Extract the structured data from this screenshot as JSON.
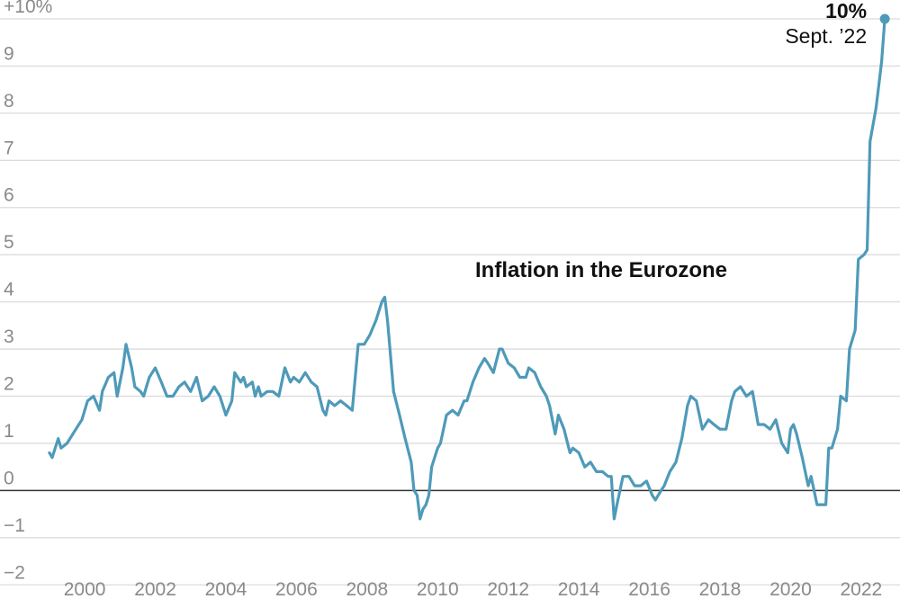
{
  "chart_data": {
    "type": "line",
    "title": "Inflation in the Eurozone",
    "ylim": [
      -2.3,
      10.4
    ],
    "xlim": [
      1997.6,
      2023.1
    ],
    "y_ticks": [
      {
        "value": 10,
        "label": "+10%"
      },
      {
        "value": 9,
        "label": "9"
      },
      {
        "value": 8,
        "label": "8"
      },
      {
        "value": 7,
        "label": "7"
      },
      {
        "value": 6,
        "label": "6"
      },
      {
        "value": 5,
        "label": "5"
      },
      {
        "value": 4,
        "label": "4"
      },
      {
        "value": 3,
        "label": "3"
      },
      {
        "value": 2,
        "label": "2"
      },
      {
        "value": 1,
        "label": "1"
      },
      {
        "value": 0,
        "label": "0"
      },
      {
        "value": -1,
        "label": "−1"
      },
      {
        "value": -2,
        "label": "−2"
      }
    ],
    "x_ticks": [
      {
        "value": 2000,
        "label": "2000"
      },
      {
        "value": 2002,
        "label": "2002"
      },
      {
        "value": 2004,
        "label": "2004"
      },
      {
        "value": 2006,
        "label": "2006"
      },
      {
        "value": 2008,
        "label": "2008"
      },
      {
        "value": 2010,
        "label": "2010"
      },
      {
        "value": 2012,
        "label": "2012"
      },
      {
        "value": 2014,
        "label": "2014"
      },
      {
        "value": 2016,
        "label": "2016"
      },
      {
        "value": 2018,
        "label": "2018"
      },
      {
        "value": 2020,
        "label": "2020"
      },
      {
        "value": 2022,
        "label": "2022"
      }
    ],
    "grid": true,
    "line_color": "#4e9ab9",
    "baseline_color": "#333333",
    "annotation": {
      "value_label": "10%",
      "date_label": "Sept. ’22",
      "x": 2022.67,
      "y": 10.0
    },
    "series": [
      {
        "x": [
          1999.0,
          1999.08,
          1999.25,
          1999.33,
          1999.5,
          1999.75,
          1999.92,
          2000.08,
          2000.25,
          2000.42,
          2000.5,
          2000.67,
          2000.83,
          2000.92,
          2001.08,
          2001.17,
          2001.33,
          2001.42,
          2001.58,
          2001.67,
          2001.75,
          2001.83,
          2002.0,
          2002.17,
          2002.33,
          2002.5,
          2002.67,
          2002.83,
          2003.0,
          2003.17,
          2003.33,
          2003.5,
          2003.67,
          2003.83,
          2004.0,
          2004.17,
          2004.25,
          2004.42,
          2004.5,
          2004.58,
          2004.75,
          2004.83,
          2004.92,
          2005.0,
          2005.17,
          2005.33,
          2005.5,
          2005.67,
          2005.83,
          2005.92,
          2006.08,
          2006.25,
          2006.42,
          2006.58,
          2006.75,
          2006.83,
          2006.92,
          2007.08,
          2007.25,
          2007.42,
          2007.58,
          2007.75,
          2007.92,
          2008.08,
          2008.25,
          2008.42,
          2008.5,
          2008.58,
          2008.75,
          2008.92,
          2009.08,
          2009.25,
          2009.33,
          2009.42,
          2009.5,
          2009.58,
          2009.67,
          2009.75,
          2009.83,
          2010.0,
          2010.08,
          2010.25,
          2010.42,
          2010.58,
          2010.75,
          2010.83,
          2011.0,
          2011.17,
          2011.33,
          2011.42,
          2011.58,
          2011.75,
          2011.83,
          2012.0,
          2012.17,
          2012.33,
          2012.5,
          2012.58,
          2012.75,
          2012.92,
          2013.08,
          2013.17,
          2013.33,
          2013.42,
          2013.58,
          2013.75,
          2013.83,
          2014.0,
          2014.17,
          2014.33,
          2014.5,
          2014.67,
          2014.83,
          2014.92,
          2015.0,
          2015.08,
          2015.25,
          2015.42,
          2015.58,
          2015.75,
          2015.92,
          2016.08,
          2016.17,
          2016.33,
          2016.42,
          2016.58,
          2016.75,
          2016.92,
          2017.08,
          2017.17,
          2017.33,
          2017.5,
          2017.67,
          2017.83,
          2018.0,
          2018.17,
          2018.33,
          2018.42,
          2018.58,
          2018.75,
          2018.92,
          2019.08,
          2019.25,
          2019.42,
          2019.58,
          2019.75,
          2019.92,
          2020.0,
          2020.08,
          2020.17,
          2020.33,
          2020.5,
          2020.58,
          2020.75,
          2020.92,
          2021.0,
          2021.08,
          2021.17,
          2021.33,
          2021.42,
          2021.58,
          2021.67,
          2021.83,
          2021.92,
          2022.08,
          2022.17,
          2022.25,
          2022.42,
          2022.5,
          2022.58,
          2022.67
        ],
        "y": [
          0.8,
          0.7,
          1.1,
          0.9,
          1.0,
          1.3,
          1.5,
          1.9,
          2.0,
          1.7,
          2.1,
          2.4,
          2.5,
          2.0,
          2.6,
          3.1,
          2.6,
          2.2,
          2.1,
          2.0,
          2.2,
          2.4,
          2.6,
          2.3,
          2.0,
          2.0,
          2.2,
          2.3,
          2.1,
          2.4,
          1.9,
          2.0,
          2.2,
          2.0,
          1.6,
          1.9,
          2.5,
          2.3,
          2.4,
          2.2,
          2.3,
          2.0,
          2.2,
          2.0,
          2.1,
          2.1,
          2.0,
          2.6,
          2.3,
          2.4,
          2.3,
          2.5,
          2.3,
          2.2,
          1.7,
          1.6,
          1.9,
          1.8,
          1.9,
          1.8,
          1.7,
          3.1,
          3.1,
          3.3,
          3.6,
          4.0,
          4.1,
          3.6,
          2.1,
          1.6,
          1.1,
          0.6,
          0.0,
          -0.1,
          -0.6,
          -0.4,
          -0.3,
          -0.1,
          0.5,
          0.9,
          1.0,
          1.6,
          1.7,
          1.6,
          1.9,
          1.9,
          2.3,
          2.6,
          2.8,
          2.7,
          2.5,
          3.0,
          3.0,
          2.7,
          2.6,
          2.4,
          2.4,
          2.6,
          2.5,
          2.2,
          2.0,
          1.8,
          1.2,
          1.6,
          1.3,
          0.8,
          0.9,
          0.8,
          0.5,
          0.6,
          0.4,
          0.4,
          0.3,
          0.3,
          -0.6,
          -0.3,
          0.3,
          0.3,
          0.1,
          0.1,
          0.2,
          -0.1,
          -0.2,
          0.0,
          0.1,
          0.4,
          0.6,
          1.1,
          1.8,
          2.0,
          1.9,
          1.3,
          1.5,
          1.4,
          1.3,
          1.3,
          1.9,
          2.1,
          2.2,
          2.0,
          2.1,
          1.4,
          1.4,
          1.3,
          1.5,
          1.0,
          0.8,
          1.3,
          1.4,
          1.2,
          0.7,
          0.1,
          0.3,
          -0.3,
          -0.3,
          -0.3,
          0.9,
          0.9,
          1.3,
          2.0,
          1.9,
          3.0,
          3.4,
          4.9,
          5.0,
          5.1,
          7.4,
          8.1,
          8.6,
          9.1,
          10.0
        ]
      }
    ]
  }
}
